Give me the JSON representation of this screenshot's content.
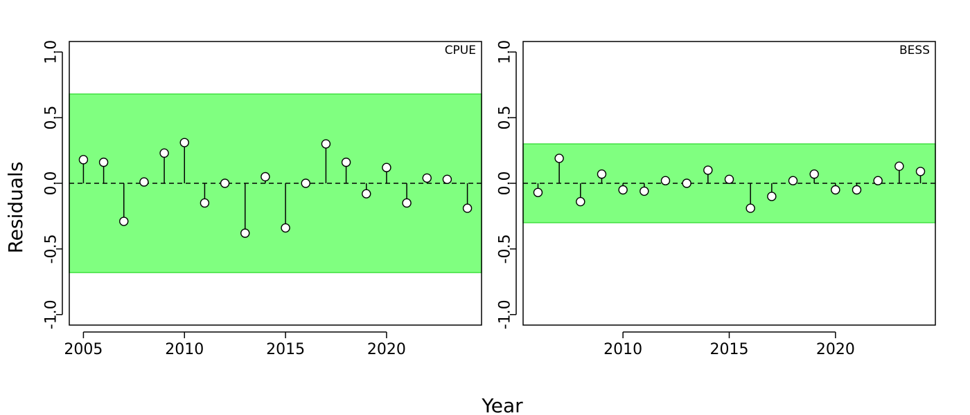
{
  "xlabel": "Year",
  "ylabel": "Residuals",
  "colors": {
    "band": "#80ff80",
    "band_edge": "#40e040",
    "stem": "#000000",
    "marker_fill": "#ffffff"
  },
  "chart_data": [
    {
      "type": "scatter",
      "title": "CPUE",
      "xlim": [
        2004.3,
        2024.7
      ],
      "ylim": [
        -1.08,
        1.08
      ],
      "xticks": [
        "2005",
        "2010",
        "2015",
        "2020"
      ],
      "yticks": [
        "-1.0",
        "-0.5",
        "0.0",
        "0.5",
        "1.0"
      ],
      "band": [
        -0.68,
        0.68
      ],
      "x": [
        2005,
        2006,
        2007,
        2008,
        2009,
        2010,
        2011,
        2012,
        2013,
        2014,
        2015,
        2016,
        2017,
        2018,
        2019,
        2020,
        2021,
        2022,
        2023,
        2024
      ],
      "y": [
        0.18,
        0.16,
        -0.29,
        0.01,
        0.23,
        0.31,
        -0.15,
        0.0,
        -0.38,
        0.05,
        -0.34,
        0.0,
        0.3,
        0.16,
        -0.08,
        0.12,
        -0.15,
        0.04,
        0.03,
        -0.19
      ]
    },
    {
      "type": "scatter",
      "title": "BESS",
      "xlim": [
        2005.3,
        2024.7
      ],
      "ylim": [
        -1.08,
        1.08
      ],
      "xticks": [
        "2010",
        "2015",
        "2020"
      ],
      "yticks": [
        "-1.0",
        "-0.5",
        "0.0",
        "0.5",
        "1.0"
      ],
      "band": [
        -0.3,
        0.3
      ],
      "x": [
        2006,
        2007,
        2008,
        2009,
        2010,
        2011,
        2012,
        2013,
        2014,
        2015,
        2016,
        2017,
        2018,
        2019,
        2020,
        2021,
        2022,
        2023,
        2024
      ],
      "y": [
        -0.07,
        0.19,
        -0.14,
        0.07,
        -0.05,
        -0.06,
        0.02,
        0.0,
        0.1,
        0.03,
        -0.19,
        -0.1,
        0.02,
        0.07,
        -0.05,
        -0.05,
        0.02,
        0.13,
        0.09
      ]
    }
  ]
}
